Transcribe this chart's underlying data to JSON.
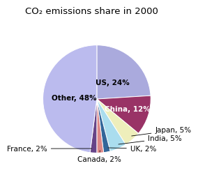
{
  "title": "CO₂ emissions share in 2000",
  "slices": [
    {
      "label": "US, 24%",
      "value": 24,
      "color": "#aaaadd"
    },
    {
      "label": "China, 12%",
      "value": 12,
      "color": "#993366"
    },
    {
      "label": "Japan, 5%",
      "value": 5,
      "color": "#eeeebb"
    },
    {
      "label": "India, 5%",
      "value": 5,
      "color": "#aaddee"
    },
    {
      "label": "UK, 2%",
      "value": 2,
      "color": "#336699"
    },
    {
      "label": "Canada, 2%",
      "value": 2,
      "color": "#dd8888"
    },
    {
      "label": "France, 2%",
      "value": 2,
      "color": "#664488"
    },
    {
      "label": "Other, 48%",
      "value": 48,
      "color": "#bbbbee"
    }
  ],
  "background_color": "#ffffff",
  "title_fontsize": 9.5,
  "label_fontsize": 7.5
}
